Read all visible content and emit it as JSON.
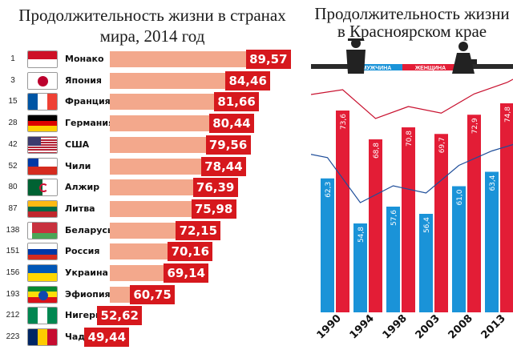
{
  "left_title": "Продолжительность жизни в странах мира, 2014 год",
  "right_title": "Продолжительность жизни в Красноярском крае",
  "colors": {
    "bar": "#f3a88c",
    "value_box": "#d6181d",
    "men": "#1a93d8",
    "women": "#e31d36"
  },
  "chart_data": [
    {
      "type": "bar",
      "orientation": "horizontal",
      "title": "Продолжительность жизни в странах мира, 2014 год",
      "rows": [
        {
          "rank": "1",
          "country": "Монако",
          "value": 89.57,
          "label": "89,57",
          "flag": "monaco-flag"
        },
        {
          "rank": "3",
          "country": "Япония",
          "value": 84.46,
          "label": "84,46",
          "flag": "japan-flag"
        },
        {
          "rank": "15",
          "country": "Франция",
          "value": 81.66,
          "label": "81,66",
          "flag": "france-flag"
        },
        {
          "rank": "28",
          "country": "Германия",
          "value": 80.44,
          "label": "80,44",
          "flag": "germany-flag"
        },
        {
          "rank": "42",
          "country": "США",
          "value": 79.56,
          "label": "79,56",
          "flag": "usa-flag"
        },
        {
          "rank": "52",
          "country": "Чили",
          "value": 78.44,
          "label": "78,44",
          "flag": "chile-flag"
        },
        {
          "rank": "80",
          "country": "Алжир",
          "value": 76.39,
          "label": "76,39",
          "flag": "algeria-flag"
        },
        {
          "rank": "87",
          "country": "Литва",
          "value": 75.98,
          "label": "75,98",
          "flag": "lithuania-flag"
        },
        {
          "rank": "138",
          "country": "Беларусь",
          "value": 72.15,
          "label": "72,15",
          "flag": "belarus-flag"
        },
        {
          "rank": "151",
          "country": "Россия",
          "value": 70.16,
          "label": "70,16",
          "flag": "russia-flag"
        },
        {
          "rank": "156",
          "country": "Украина",
          "value": 69.14,
          "label": "69,14",
          "flag": "ukraine-flag"
        },
        {
          "rank": "193",
          "country": "Эфиопия",
          "value": 60.75,
          "label": "60,75",
          "flag": "ethiopia-flag"
        },
        {
          "rank": "212",
          "country": "Нигерия",
          "value": 52.62,
          "label": "52,62",
          "flag": "nigeria-flag"
        },
        {
          "rank": "223",
          "country": "Чад",
          "value": 49.44,
          "label": "49,44",
          "flag": "chad-flag"
        }
      ]
    },
    {
      "type": "bar",
      "title": "Продолжительность жизни в Красноярском крае",
      "categories": [
        "1990",
        "1994",
        "1998",
        "2003",
        "2008",
        "2013"
      ],
      "series": [
        {
          "name": "МУЖЧИНА",
          "values": [
            62.3,
            54.8,
            57.6,
            56.4,
            61.0,
            63.4
          ],
          "labels": [
            "62,3",
            "54,8",
            "57,6",
            "56,4",
            "61,0",
            "63,4"
          ]
        },
        {
          "name": "ЖЕНЩИНА",
          "values": [
            73.6,
            68.8,
            70.8,
            69.7,
            72.9,
            74.8
          ],
          "labels": [
            "73,6",
            "68,8",
            "70,8",
            "69,7",
            "72,9",
            "74,8"
          ]
        }
      ],
      "legend": [
        "МУЖЧИНА",
        "ЖЕНЩИНА"
      ]
    }
  ]
}
